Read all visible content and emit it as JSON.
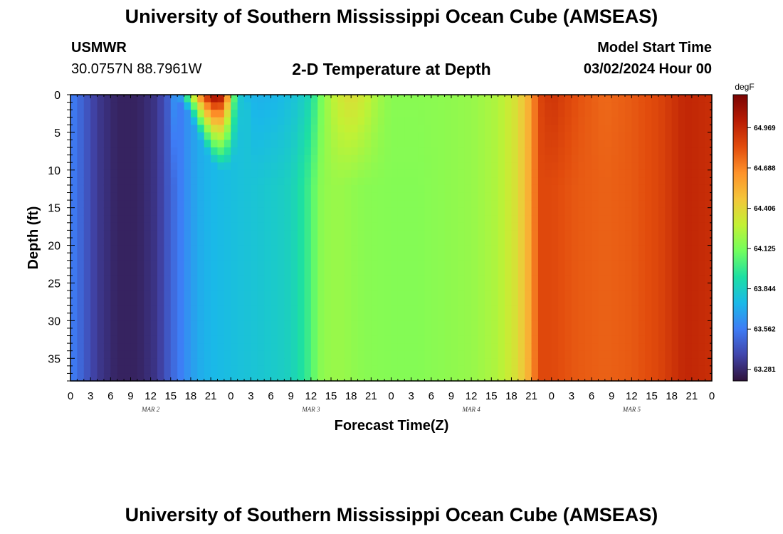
{
  "page": {
    "title": "University of Southern Mississippi Ocean Cube (AMSEAS)",
    "station_id": "USMWR",
    "station_coords": "30.0757N  88.7961W",
    "model_start_label": "Model Start Time",
    "model_start_value": "03/02/2024 Hour 00"
  },
  "colors": {
    "colormap": [
      "#30123b",
      "#4145ab",
      "#3e7cf5",
      "#1ab9e8",
      "#1ddfa3",
      "#72fe5e",
      "#c3f134",
      "#f4c53a",
      "#fe922a",
      "#e24c0d",
      "#b81c04",
      "#7a0403"
    ]
  },
  "chart_data": {
    "type": "heatmap",
    "title": "2-D Temperature at Depth",
    "xlabel": "Forecast Time(Z)",
    "ylabel": "Depth (ft)",
    "x_tick_labels": [
      "0",
      "3",
      "6",
      "9",
      "12",
      "15",
      "18",
      "21",
      "0",
      "3",
      "6",
      "9",
      "12",
      "15",
      "18",
      "21",
      "0",
      "3",
      "6",
      "9",
      "12",
      "15",
      "18",
      "21",
      "0",
      "3",
      "6",
      "9",
      "12",
      "15",
      "18",
      "21",
      "0"
    ],
    "x_range_hours": [
      0,
      96
    ],
    "day_labels": [
      {
        "label": "MAR 2",
        "hour": 12
      },
      {
        "label": "MAR 3",
        "hour": 36
      },
      {
        "label": "MAR 4",
        "hour": 60
      },
      {
        "label": "MAR 5",
        "hour": 84
      }
    ],
    "y_ticks": [
      0,
      5,
      10,
      15,
      20,
      25,
      30,
      35
    ],
    "y_range": [
      0,
      38
    ],
    "y_inverted": true,
    "colorbar": {
      "unit": "degF",
      "ticks": [
        63.281,
        63.562,
        63.844,
        64.125,
        64.406,
        64.688,
        64.969
      ],
      "range": [
        63.2,
        65.2
      ]
    },
    "profile_surface": {
      "hours": [
        0,
        2,
        4,
        7,
        10,
        13,
        15,
        16,
        17,
        18,
        19,
        20,
        21,
        22,
        23,
        24,
        25,
        26,
        28,
        31,
        34,
        36,
        37,
        38,
        40,
        42,
        44,
        46,
        48,
        52,
        56,
        60,
        64,
        67,
        69,
        70,
        72,
        76,
        80,
        84,
        88,
        92,
        96
      ],
      "values": [
        63.58,
        63.46,
        63.34,
        63.26,
        63.26,
        63.33,
        63.5,
        63.74,
        63.98,
        64.25,
        64.62,
        64.9,
        65.15,
        65.18,
        65.05,
        64.3,
        63.85,
        63.76,
        63.72,
        63.74,
        63.8,
        63.9,
        64.05,
        64.18,
        64.32,
        64.38,
        64.32,
        64.22,
        64.16,
        64.16,
        64.17,
        64.19,
        64.25,
        64.38,
        64.6,
        64.85,
        64.93,
        64.82,
        64.76,
        64.8,
        64.86,
        64.98,
        64.95
      ]
    },
    "profile_bottom": {
      "hours": [
        0,
        2,
        4,
        7,
        10,
        13,
        15,
        17,
        19,
        21,
        23,
        25,
        28,
        31,
        33,
        34,
        36,
        37,
        38,
        40,
        42,
        44,
        48,
        52,
        56,
        60,
        64,
        67,
        69,
        70,
        72,
        76,
        80,
        84,
        88,
        92,
        96
      ],
      "values": [
        63.58,
        63.46,
        63.34,
        63.26,
        63.26,
        63.33,
        63.48,
        63.6,
        63.7,
        63.74,
        63.76,
        63.78,
        63.8,
        63.83,
        63.86,
        63.9,
        64.02,
        64.14,
        64.18,
        64.2,
        64.18,
        64.16,
        64.15,
        64.15,
        64.17,
        64.19,
        64.25,
        64.38,
        64.6,
        64.85,
        64.85,
        64.8,
        64.78,
        64.8,
        64.86,
        64.98,
        64.95
      ]
    }
  }
}
